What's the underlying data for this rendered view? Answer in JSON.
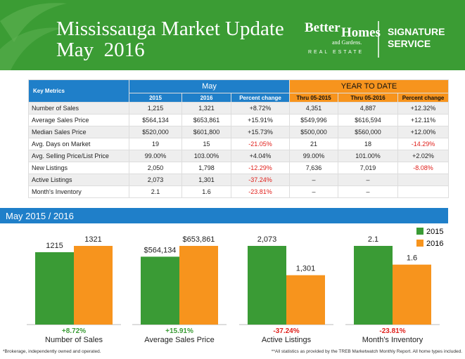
{
  "header": {
    "title": "Mississauga Market Update",
    "subtitle": "May  2016",
    "brand": [
      "Better",
      "Homes",
      "and Gardens.",
      "REAL ESTATE"
    ],
    "service": [
      "SIGNATURE",
      "SERVICE"
    ]
  },
  "table": {
    "corner": "Key Metrics",
    "groups": [
      "May",
      "YEAR TO DATE"
    ],
    "columns": [
      "2015",
      "2016",
      "Percent change",
      "Thru 05-2015",
      "Thru 05-2016",
      "Percent change"
    ],
    "rows": [
      [
        "Number of Sales",
        "1,215",
        "1,321",
        "+8.72%",
        "4,351",
        "4,887",
        "+12.32%"
      ],
      [
        "Average Sales Price",
        "$564,134",
        "$653,861",
        "+15.91%",
        "$549,996",
        "$616,594",
        "+12.11%"
      ],
      [
        "Median Sales Price",
        "$520,000",
        "$601,800",
        "+15.73%",
        "$500,000",
        "$560,000",
        "+12.00%"
      ],
      [
        "Avg. Days on Market",
        "19",
        "15",
        "-21.05%",
        "21",
        "18",
        "-14.29%"
      ],
      [
        "Avg. Selling Price/List Price",
        "99.00%",
        "103.00%",
        "+4.04%",
        "99.00%",
        "101.00%",
        "+2.02%"
      ],
      [
        "New Listings",
        "2,050",
        "1,798",
        "-12.29%",
        "7,636",
        "7,019",
        "-8.08%"
      ],
      [
        "Active Listings",
        "2,073",
        "1,301",
        "-37.24%",
        "–",
        "–",
        null
      ],
      [
        "Month's Inventory",
        "2.1",
        "1.6",
        "-23.81%",
        "–",
        "–",
        null
      ]
    ]
  },
  "chart_data": {
    "type": "bar",
    "title": "May 2015 / 2016",
    "categories": [
      "Number of Sales",
      "Average Sales Price",
      "Active Listings",
      "Month's Inventory"
    ],
    "annotations": [
      "+8.72%",
      "+15.91%",
      "-37.24%",
      "-23.81%"
    ],
    "legend": "top-right",
    "series": [
      {
        "name": "2015",
        "color": "#3a9b35",
        "values": [
          1215,
          564134,
          2073,
          2.1
        ],
        "value_labels": [
          "1215",
          "$564,134",
          "2,073",
          "2.1"
        ]
      },
      {
        "name": "2016",
        "color": "#f7941d",
        "values": [
          1321,
          653861,
          1301,
          1.6
        ],
        "value_labels": [
          "1321",
          "$653,861",
          "1,301",
          "1.6"
        ]
      }
    ]
  },
  "footer": [
    "*Brokerage, independently owned and operated.",
    "**All statistics as provided by the TREB Marketwatch Monthly Report. All home types included."
  ]
}
